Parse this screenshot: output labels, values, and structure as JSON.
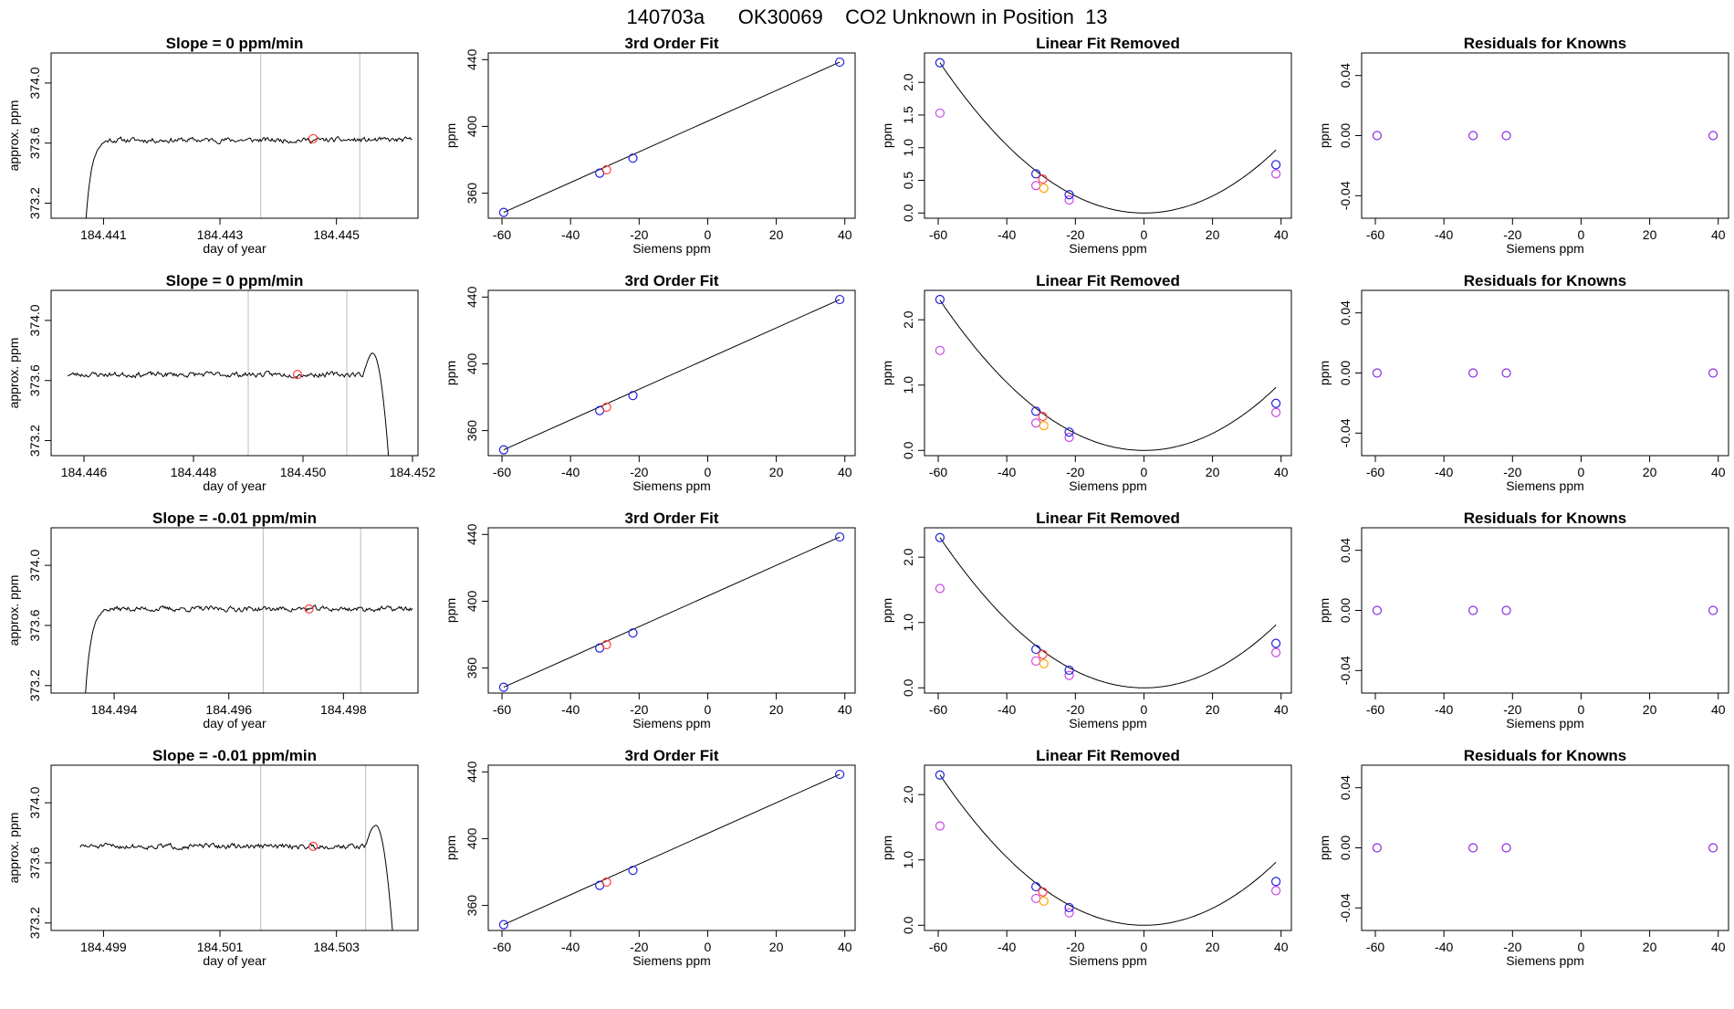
{
  "page_title": "140703a      OK30069    CO2 Unknown in Position  13",
  "colors": {
    "trace": "#000000",
    "vline": "#bdbdbd",
    "known": "#2020e0",
    "known_mean": "#ff4040",
    "orange": "#ffa500",
    "magenta": "#cc44ee",
    "residual": "#8a2be2"
  },
  "chart_data": [
    {
      "type": "line",
      "row": 0,
      "title": "Slope =  0  ppm/min",
      "xlabel": "day of year",
      "ylabel": "approx. ppm",
      "xlim": [
        184.4401,
        184.4464
      ],
      "ylim": [
        373.1,
        374.2
      ],
      "xticks": [
        184.441,
        184.443,
        184.445
      ],
      "xtick_labels": [
        "184.441",
        "184.443",
        "184.445"
      ],
      "yticks": [
        373.2,
        373.6,
        374.0
      ],
      "ytick_labels": [
        "373.2",
        "373.6",
        "374.0"
      ],
      "vlines": [
        184.4437,
        184.4454
      ],
      "marker": {
        "x": 184.4446,
        "y": 373.63
      },
      "trace_kind": "rise",
      "trace": {
        "start": 184.4407,
        "end": 184.4463,
        "level": 373.62,
        "start_value": 373.1,
        "transition": 184.4411,
        "seed": 11
      }
    },
    {
      "type": "line",
      "row": 1,
      "title": "Slope =  0  ppm/min",
      "xlabel": "day of year",
      "ylabel": "approx. ppm",
      "xlim": [
        184.4454,
        184.4521
      ],
      "ylim": [
        373.1,
        374.2
      ],
      "xticks": [
        184.446,
        184.448,
        184.45,
        184.452
      ],
      "xtick_labels": [
        "184.446",
        "184.448",
        "184.450",
        "184.452"
      ],
      "yticks": [
        373.2,
        373.6,
        374.0
      ],
      "ytick_labels": [
        "373.2",
        "373.6",
        "374.0"
      ],
      "vlines": [
        184.449,
        184.4508
      ],
      "marker": {
        "x": 184.4499,
        "y": 373.64
      },
      "trace_kind": "fall",
      "trace": {
        "start": 184.4457,
        "end": 184.4516,
        "level": 373.64,
        "peak": 373.78,
        "end_value": 373.1,
        "transition": 184.4511,
        "seed": 23
      }
    },
    {
      "type": "line",
      "row": 2,
      "title": "Slope =  -0.01  ppm/min",
      "xlabel": "day of year",
      "ylabel": "approx. ppm",
      "xlim": [
        184.4929,
        184.4993
      ],
      "ylim": [
        373.15,
        374.25
      ],
      "xticks": [
        184.494,
        184.496,
        184.498
      ],
      "xtick_labels": [
        "184.494",
        "184.496",
        "184.498"
      ],
      "yticks": [
        373.2,
        373.6,
        374.0
      ],
      "ytick_labels": [
        "373.2",
        "373.6",
        "374.0"
      ],
      "vlines": [
        184.4966,
        184.4983
      ],
      "marker": {
        "x": 184.4974,
        "y": 373.71
      },
      "trace_kind": "rise",
      "trace": {
        "start": 184.4935,
        "end": 184.4992,
        "level": 373.71,
        "start_value": 373.15,
        "transition": 184.4939,
        "seed": 37
      }
    },
    {
      "type": "line",
      "row": 3,
      "title": "Slope =  -0.01  ppm/min",
      "xlabel": "day of year",
      "ylabel": "approx. ppm",
      "xlim": [
        184.4981,
        184.5044
      ],
      "ylim": [
        373.15,
        374.25
      ],
      "xticks": [
        184.499,
        184.501,
        184.503
      ],
      "xtick_labels": [
        "184.499",
        "184.501",
        "184.503"
      ],
      "yticks": [
        373.2,
        373.6,
        374.0
      ],
      "ytick_labels": [
        "373.2",
        "373.6",
        "374.0"
      ],
      "vlines": [
        184.5017,
        184.5035
      ],
      "marker": {
        "x": 184.5026,
        "y": 373.71
      },
      "trace_kind": "fall",
      "trace": {
        "start": 184.4986,
        "end": 184.504,
        "level": 373.71,
        "peak": 373.85,
        "end_value": 373.15,
        "transition": 184.5035,
        "seed": 51
      }
    },
    {
      "type": "scatter",
      "row": 0,
      "title": "3rd Order Fit",
      "xlabel": "Siemens ppm",
      "ylabel": "ppm",
      "xlim": [
        -64,
        43
      ],
      "ylim": [
        345,
        444
      ],
      "xticks": [
        -60,
        -40,
        -20,
        0,
        20,
        40
      ],
      "xtick_labels": [
        "-60",
        "-40",
        "-20",
        "0",
        "20",
        "40"
      ],
      "yticks": [
        360,
        400,
        440
      ],
      "ytick_labels": [
        "360",
        "400",
        "440"
      ],
      "line": {
        "x1": -59.5,
        "y1": 348.5,
        "x2": 38.5,
        "y2": 438.5
      },
      "knowns_x": [
        -59.5,
        -31.5,
        -21.8,
        38.5
      ],
      "knowns_y": [
        348.5,
        372.0,
        381.0,
        438.5
      ],
      "unknown": {
        "x": -29.5,
        "y": 374.0
      }
    },
    {
      "type": "scatter",
      "row": 1,
      "title": "3rd Order Fit",
      "xlabel": "Siemens ppm",
      "ylabel": "ppm",
      "xlim": [
        -64,
        43
      ],
      "ylim": [
        345,
        444
      ],
      "xticks": [
        -60,
        -40,
        -20,
        0,
        20,
        40
      ],
      "xtick_labels": [
        "-60",
        "-40",
        "-20",
        "0",
        "20",
        "40"
      ],
      "yticks": [
        360,
        400,
        440
      ],
      "ytick_labels": [
        "360",
        "400",
        "440"
      ],
      "line": {
        "x1": -59.5,
        "y1": 348.5,
        "x2": 38.5,
        "y2": 438.5
      },
      "knowns_x": [
        -59.5,
        -31.5,
        -21.8,
        38.5
      ],
      "knowns_y": [
        348.5,
        372.0,
        381.0,
        438.5
      ],
      "unknown": {
        "x": -29.5,
        "y": 374.0
      }
    },
    {
      "type": "scatter",
      "row": 2,
      "title": "3rd Order Fit",
      "xlabel": "Siemens ppm",
      "ylabel": "ppm",
      "xlim": [
        -64,
        43
      ],
      "ylim": [
        345,
        444
      ],
      "xticks": [
        -60,
        -40,
        -20,
        0,
        20,
        40
      ],
      "xtick_labels": [
        "-60",
        "-40",
        "-20",
        "0",
        "20",
        "40"
      ],
      "yticks": [
        360,
        400,
        440
      ],
      "ytick_labels": [
        "360",
        "400",
        "440"
      ],
      "line": {
        "x1": -59.5,
        "y1": 348.5,
        "x2": 38.5,
        "y2": 438.5
      },
      "knowns_x": [
        -59.5,
        -31.5,
        -21.8,
        38.5
      ],
      "knowns_y": [
        348.5,
        372.0,
        381.0,
        438.5
      ],
      "unknown": {
        "x": -29.5,
        "y": 374.0
      }
    },
    {
      "type": "scatter",
      "row": 3,
      "title": "3rd Order Fit",
      "xlabel": "Siemens ppm",
      "ylabel": "ppm",
      "xlim": [
        -64,
        43
      ],
      "ylim": [
        345,
        444
      ],
      "xticks": [
        -60,
        -40,
        -20,
        0,
        20,
        40
      ],
      "xtick_labels": [
        "-60",
        "-40",
        "-20",
        "0",
        "20",
        "40"
      ],
      "yticks": [
        360,
        400,
        440
      ],
      "ytick_labels": [
        "360",
        "400",
        "440"
      ],
      "line": {
        "x1": -59.5,
        "y1": 348.5,
        "x2": 38.5,
        "y2": 438.5
      },
      "knowns_x": [
        -59.5,
        -31.5,
        -21.8,
        38.5
      ],
      "knowns_y": [
        348.5,
        372.0,
        381.0,
        438.5
      ],
      "unknown": {
        "x": -29.5,
        "y": 374.0
      }
    },
    {
      "type": "scatter",
      "row": 0,
      "title": "Linear Fit Removed",
      "xlabel": "Siemens ppm",
      "ylabel": "ppm",
      "xlim": [
        -64,
        43
      ],
      "ylim": [
        -0.08,
        2.45
      ],
      "xticks": [
        -60,
        -40,
        -20,
        0,
        20,
        40
      ],
      "xtick_labels": [
        "-60",
        "-40",
        "-20",
        "0",
        "20",
        "40"
      ],
      "yticks": [
        0,
        0.5,
        1.0,
        1.5,
        2.0
      ],
      "ytick_labels": [
        "0.0",
        "0.5",
        "1.0",
        "1.5",
        "2.0"
      ],
      "curve": {
        "a": 0.00065,
        "x_from": -59.5,
        "x_to": 38.5
      },
      "knowns_x": [
        -59.5,
        -31.5,
        -21.8,
        38.5
      ],
      "knowns_y": [
        2.3,
        0.6,
        0.28,
        0.74
      ],
      "magenta_x": [
        -59.5,
        -31.5,
        -21.8,
        38.5
      ],
      "magenta_y": [
        1.53,
        0.42,
        0.2,
        0.6
      ],
      "unknown": {
        "x": -29.5,
        "y": 0.52
      },
      "orange": {
        "x": -29.2,
        "y": 0.38
      }
    },
    {
      "type": "scatter",
      "row": 1,
      "title": "Linear Fit Removed",
      "xlabel": "Siemens ppm",
      "ylabel": "ppm",
      "xlim": [
        -64,
        43
      ],
      "ylim": [
        -0.08,
        2.45
      ],
      "xticks": [
        -60,
        -40,
        -20,
        0,
        20,
        40
      ],
      "xtick_labels": [
        "-60",
        "-40",
        "-20",
        "0",
        "20",
        "40"
      ],
      "yticks": [
        0,
        1.0,
        2.0
      ],
      "ytick_labels": [
        "0.0",
        "1.0",
        "2.0"
      ],
      "curve": {
        "a": 0.00065,
        "x_from": -59.5,
        "x_to": 38.5
      },
      "knowns_x": [
        -59.5,
        -31.5,
        -21.8,
        38.5
      ],
      "knowns_y": [
        2.31,
        0.6,
        0.28,
        0.72
      ],
      "magenta_x": [
        -59.5,
        -31.5,
        -21.8,
        38.5
      ],
      "magenta_y": [
        1.53,
        0.42,
        0.2,
        0.58
      ],
      "unknown": {
        "x": -29.5,
        "y": 0.52
      },
      "orange": {
        "x": -29.2,
        "y": 0.38
      }
    },
    {
      "type": "scatter",
      "row": 2,
      "title": "Linear Fit Removed",
      "xlabel": "Siemens ppm",
      "ylabel": "ppm",
      "xlim": [
        -64,
        43
      ],
      "ylim": [
        -0.08,
        2.45
      ],
      "xticks": [
        -60,
        -40,
        -20,
        0,
        20,
        40
      ],
      "xtick_labels": [
        "-60",
        "-40",
        "-20",
        "0",
        "20",
        "40"
      ],
      "yticks": [
        0,
        1.0,
        2.0
      ],
      "ytick_labels": [
        "0.0",
        "1.0",
        "2.0"
      ],
      "curve": {
        "a": 0.00065,
        "x_from": -59.5,
        "x_to": 38.5
      },
      "knowns_x": [
        -59.5,
        -31.5,
        -21.8,
        38.5
      ],
      "knowns_y": [
        2.3,
        0.59,
        0.27,
        0.68
      ],
      "magenta_x": [
        -59.5,
        -31.5,
        -21.8,
        38.5
      ],
      "magenta_y": [
        1.52,
        0.41,
        0.19,
        0.54
      ],
      "unknown": {
        "x": -29.5,
        "y": 0.51
      },
      "orange": {
        "x": -29.2,
        "y": 0.37
      }
    },
    {
      "type": "scatter",
      "row": 3,
      "title": "Linear Fit Removed",
      "xlabel": "Siemens ppm",
      "ylabel": "ppm",
      "xlim": [
        -64,
        43
      ],
      "ylim": [
        -0.08,
        2.45
      ],
      "xticks": [
        -60,
        -40,
        -20,
        0,
        20,
        40
      ],
      "xtick_labels": [
        "-60",
        "-40",
        "-20",
        "0",
        "20",
        "40"
      ],
      "yticks": [
        0,
        1.0,
        2.0
      ],
      "ytick_labels": [
        "0.0",
        "1.0",
        "2.0"
      ],
      "curve": {
        "a": 0.00065,
        "x_from": -59.5,
        "x_to": 38.5
      },
      "knowns_x": [
        -59.5,
        -31.5,
        -21.8,
        38.5
      ],
      "knowns_y": [
        2.3,
        0.59,
        0.27,
        0.67
      ],
      "magenta_x": [
        -59.5,
        -31.5,
        -21.8,
        38.5
      ],
      "magenta_y": [
        1.52,
        0.41,
        0.19,
        0.53
      ],
      "unknown": {
        "x": -29.5,
        "y": 0.51
      },
      "orange": {
        "x": -29.2,
        "y": 0.37
      }
    },
    {
      "type": "scatter",
      "row": 0,
      "title": "Residuals for Knowns",
      "xlabel": "Siemens ppm",
      "ylabel": "ppm",
      "xlim": [
        -64,
        43
      ],
      "ylim": [
        -0.055,
        0.055
      ],
      "xticks": [
        -60,
        -40,
        -20,
        0,
        20,
        40
      ],
      "xtick_labels": [
        "-60",
        "-40",
        "-20",
        "0",
        "20",
        "40"
      ],
      "yticks": [
        -0.04,
        0.0,
        0.04
      ],
      "ytick_labels": [
        "-0.04",
        "0.00",
        "0.04"
      ],
      "x": [
        -59.5,
        -31.5,
        -21.8,
        38.5
      ],
      "y": [
        0,
        0,
        0,
        0
      ]
    },
    {
      "type": "scatter",
      "row": 1,
      "title": "Residuals for Knowns",
      "xlabel": "Siemens ppm",
      "ylabel": "ppm",
      "xlim": [
        -64,
        43
      ],
      "ylim": [
        -0.055,
        0.055
      ],
      "xticks": [
        -60,
        -40,
        -20,
        0,
        20,
        40
      ],
      "xtick_labels": [
        "-60",
        "-40",
        "-20",
        "0",
        "20",
        "40"
      ],
      "yticks": [
        -0.04,
        0.0,
        0.04
      ],
      "ytick_labels": [
        "-0.04",
        "0.00",
        "0.04"
      ],
      "x": [
        -59.5,
        -31.5,
        -21.8,
        38.5
      ],
      "y": [
        0,
        0,
        0,
        0
      ]
    },
    {
      "type": "scatter",
      "row": 2,
      "title": "Residuals for Knowns",
      "xlabel": "Siemens ppm",
      "ylabel": "ppm",
      "xlim": [
        -64,
        43
      ],
      "ylim": [
        -0.055,
        0.055
      ],
      "xticks": [
        -60,
        -40,
        -20,
        0,
        20,
        40
      ],
      "xtick_labels": [
        "-60",
        "-40",
        "-20",
        "0",
        "20",
        "40"
      ],
      "yticks": [
        -0.04,
        0.0,
        0.04
      ],
      "ytick_labels": [
        "-0.04",
        "0.00",
        "0.04"
      ],
      "x": [
        -59.5,
        -31.5,
        -21.8,
        38.5
      ],
      "y": [
        0,
        0,
        0,
        0
      ]
    },
    {
      "type": "scatter",
      "row": 3,
      "title": "Residuals for Knowns",
      "xlabel": "Siemens ppm",
      "ylabel": "ppm",
      "xlim": [
        -64,
        43
      ],
      "ylim": [
        -0.055,
        0.055
      ],
      "xticks": [
        -60,
        -40,
        -20,
        0,
        20,
        40
      ],
      "xtick_labels": [
        "-60",
        "-40",
        "-20",
        "0",
        "20",
        "40"
      ],
      "yticks": [
        -0.04,
        0.0,
        0.04
      ],
      "ytick_labels": [
        "-0.04",
        "0.00",
        "0.04"
      ],
      "x": [
        -59.5,
        -31.5,
        -21.8,
        38.5
      ],
      "y": [
        0,
        0,
        0,
        0
      ]
    }
  ]
}
